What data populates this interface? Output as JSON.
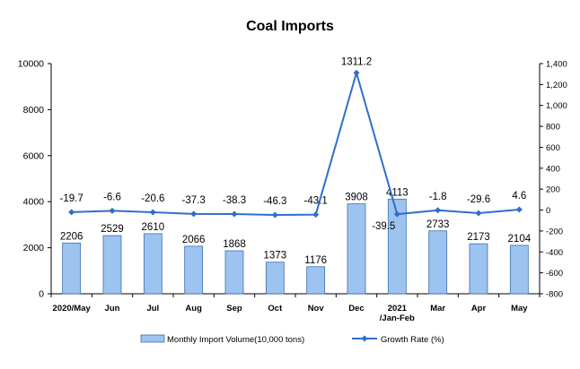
{
  "chart_data": {
    "type": "bar+line",
    "title": "Coal Imports",
    "categories": [
      "2020/May",
      "Jun",
      "Jul",
      "Aug",
      "Sep",
      "Oct",
      "Nov",
      "Dec",
      "2021/Jan-Feb",
      "Mar",
      "Apr",
      "May"
    ],
    "category_labels": [
      [
        "2020/May"
      ],
      [
        "Jun"
      ],
      [
        "Jul"
      ],
      [
        "Aug"
      ],
      [
        "Sep"
      ],
      [
        "Oct"
      ],
      [
        "Nov"
      ],
      [
        "Dec"
      ],
      [
        "2021",
        "/Jan-Feb"
      ],
      [
        "Mar"
      ],
      [
        "Apr"
      ],
      [
        "May"
      ]
    ],
    "bar_series": {
      "name": "Monthly Import Volume(10,000 tons)",
      "values": [
        2206,
        2529,
        2610,
        2066,
        1868,
        1373,
        1176,
        3908,
        4113,
        2733,
        2173,
        2104
      ],
      "labels": [
        "2206",
        "2529",
        "2610",
        "2066",
        "1868",
        "1373",
        "1176",
        "3908",
        "4113",
        "2733",
        "2173",
        "2104"
      ],
      "color": "#9DC3F0",
      "border_color": "#3E6FB0"
    },
    "line_series": {
      "name": "Growth Rate (%)",
      "values": [
        -19.7,
        -6.6,
        -20.6,
        -37.3,
        -38.3,
        -46.3,
        -43.1,
        1311.2,
        -39.5,
        -1.8,
        -29.6,
        4.6
      ],
      "labels": [
        "-19.7",
        "-6.6",
        "-20.6",
        "-37.3",
        "-38.3",
        "-46.3",
        "-43.1",
        "1311.2",
        "-39.5",
        "-1.8",
        "-29.6",
        "4.6"
      ],
      "color": "#2F6FC8"
    },
    "y_left": {
      "ylim": [
        0,
        10000
      ],
      "ticks": [
        0,
        2000,
        4000,
        6000,
        8000,
        10000
      ],
      "tick_labels": [
        "0",
        "2000",
        "4000",
        "6000",
        "8000",
        "10000"
      ]
    },
    "y_right": {
      "ylim": [
        -800,
        1400
      ],
      "ticks": [
        -800,
        -600,
        -400,
        -200,
        0,
        200,
        400,
        600,
        800,
        1000,
        1200,
        1400
      ],
      "tick_labels": [
        "-800",
        "-600",
        "-400",
        "-200",
        "0",
        "200",
        "400",
        "600",
        "800",
        "1,000",
        "1,200",
        "1,400"
      ]
    },
    "legend": {
      "placement": "bottom",
      "bar_label": "Monthly Import Volume(10,000 tons)",
      "line_label": "Growth Rate (%)"
    },
    "grid": false
  }
}
